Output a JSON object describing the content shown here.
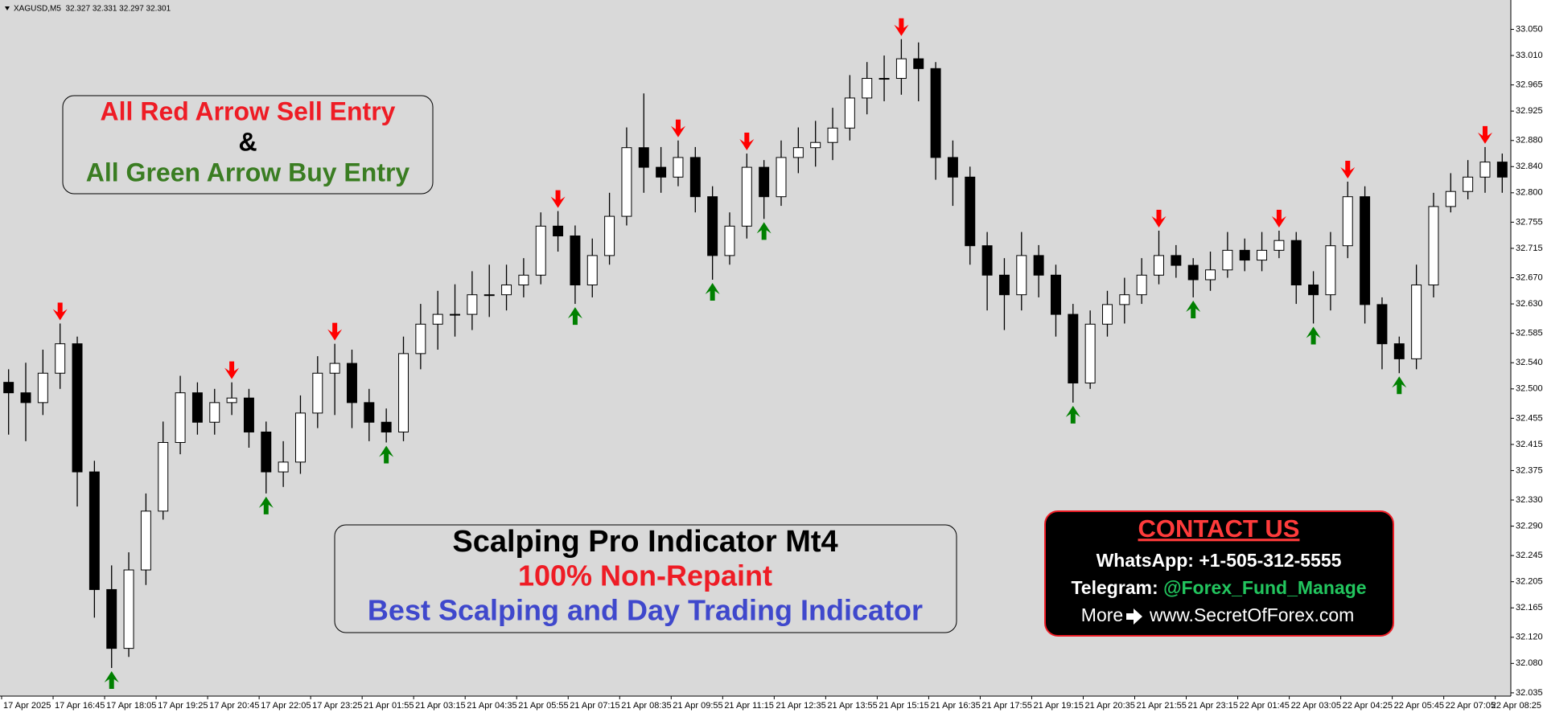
{
  "chart_data": {
    "type": "candlestick",
    "title": "XAGUSD,M5  32.327 32.331 32.297 32.301",
    "categories": [
      "17 Apr 2025",
      null,
      null,
      "17 Apr 16:45",
      null,
      null,
      "17 Apr 18:05",
      null,
      null,
      "17 Apr 19:25",
      null,
      null,
      "17 Apr 20:45",
      null,
      null,
      "17 Apr 22:05",
      null,
      null,
      "17 Apr 23:25",
      null,
      null,
      "21 Apr 01:55",
      null,
      null,
      "21 Apr 03:15",
      null,
      null,
      "21 Apr 04:35",
      null,
      null,
      "21 Apr 05:55",
      null,
      null,
      "21 Apr 07:15",
      null,
      null,
      "21 Apr 08:35",
      null,
      null,
      "21 Apr 09:55",
      null,
      null,
      "21 Apr 11:15",
      null,
      null,
      "21 Apr 12:35",
      null,
      null,
      "21 Apr 13:55",
      null,
      null,
      "21 Apr 15:15",
      null,
      null,
      "21 Apr 16:35",
      null,
      null,
      "21 Apr 17:55",
      null,
      null,
      "21 Apr 19:15",
      null,
      null,
      "21 Apr 20:35",
      null,
      null,
      "21 Apr 21:55",
      null,
      null,
      "21 Apr 23:15",
      null,
      null,
      "22 Apr 01:45",
      null,
      null,
      "22 Apr 03:05",
      null,
      null,
      "22 Apr 04:25",
      null,
      null,
      "22 Apr 05:45",
      null,
      null,
      "22 Apr 07:05",
      null,
      null,
      "22 Apr 08:25"
    ],
    "open": [
      32.51,
      32.494,
      32.479,
      32.524,
      32.569,
      32.373,
      32.193,
      32.103,
      32.223,
      32.313,
      32.418,
      32.494,
      32.449,
      32.479,
      32.486,
      32.434,
      32.373,
      32.388,
      32.463,
      32.524,
      32.539,
      32.479,
      32.449,
      32.434,
      32.554,
      32.599,
      32.614,
      32.614,
      32.644,
      32.644,
      32.659,
      32.674,
      32.749,
      32.734,
      32.659,
      32.704,
      32.764,
      32.869,
      32.839,
      32.824,
      32.854,
      32.794,
      32.704,
      32.749,
      32.839,
      32.794,
      32.854,
      32.869,
      32.877,
      32.899,
      32.945,
      32.975,
      32.975,
      33.005,
      32.99,
      32.854,
      32.824,
      32.719,
      32.674,
      32.644,
      32.704,
      32.674,
      32.614,
      32.509,
      32.599,
      32.629,
      32.644,
      32.674,
      32.704,
      32.689,
      32.667,
      32.682,
      32.712,
      32.697,
      32.712,
      32.727,
      32.659,
      32.644,
      32.719,
      32.794,
      32.629,
      32.569,
      32.546,
      32.659,
      32.779,
      32.802,
      32.824,
      32.847
    ],
    "high": [
      32.53,
      32.54,
      32.56,
      32.6,
      32.58,
      32.39,
      32.23,
      32.25,
      32.34,
      32.45,
      32.52,
      32.51,
      32.5,
      32.51,
      32.5,
      32.45,
      32.42,
      32.49,
      32.55,
      32.569,
      32.56,
      32.5,
      32.47,
      32.58,
      32.63,
      32.65,
      32.66,
      32.68,
      32.69,
      32.69,
      32.7,
      32.77,
      32.772,
      32.75,
      32.73,
      32.8,
      32.9,
      32.952,
      32.87,
      32.88,
      32.87,
      32.81,
      32.77,
      32.86,
      32.85,
      32.88,
      32.9,
      32.91,
      32.93,
      32.98,
      33.0,
      33.01,
      33.035,
      33.03,
      33.0,
      32.88,
      32.84,
      32.74,
      32.7,
      32.74,
      32.72,
      32.69,
      32.63,
      32.62,
      32.65,
      32.67,
      32.7,
      32.742,
      32.72,
      32.7,
      32.71,
      32.74,
      32.73,
      32.74,
      32.742,
      32.74,
      32.68,
      32.74,
      32.817,
      32.81,
      32.64,
      32.58,
      32.69,
      32.8,
      32.83,
      32.85,
      32.87,
      32.86
    ],
    "low": [
      32.43,
      32.42,
      32.46,
      32.5,
      32.32,
      32.15,
      32.073,
      32.09,
      32.2,
      32.3,
      32.4,
      32.43,
      32.43,
      32.46,
      32.41,
      32.34,
      32.35,
      32.37,
      32.44,
      32.46,
      32.44,
      32.42,
      32.418,
      32.42,
      32.53,
      32.56,
      32.58,
      32.59,
      32.61,
      32.62,
      32.64,
      32.66,
      32.71,
      32.63,
      32.64,
      32.69,
      32.75,
      32.8,
      32.8,
      32.81,
      32.77,
      32.667,
      32.69,
      32.73,
      32.76,
      32.78,
      32.83,
      32.84,
      32.85,
      32.88,
      32.92,
      32.94,
      32.95,
      32.94,
      32.82,
      32.78,
      32.69,
      32.62,
      32.59,
      32.62,
      32.64,
      32.58,
      32.479,
      32.5,
      32.58,
      32.6,
      32.63,
      32.66,
      32.67,
      32.64,
      32.65,
      32.67,
      32.68,
      32.68,
      32.7,
      32.63,
      32.6,
      32.62,
      32.7,
      32.6,
      32.53,
      32.524,
      32.53,
      32.64,
      32.77,
      32.79,
      32.8,
      32.8
    ],
    "close": [
      32.494,
      32.479,
      32.524,
      32.569,
      32.373,
      32.193,
      32.103,
      32.223,
      32.313,
      32.418,
      32.494,
      32.449,
      32.479,
      32.486,
      32.434,
      32.373,
      32.388,
      32.463,
      32.524,
      32.539,
      32.479,
      32.449,
      32.434,
      32.554,
      32.599,
      32.614,
      32.614,
      32.644,
      32.644,
      32.659,
      32.674,
      32.749,
      32.734,
      32.659,
      32.704,
      32.764,
      32.869,
      32.839,
      32.824,
      32.854,
      32.794,
      32.704,
      32.749,
      32.839,
      32.794,
      32.854,
      32.869,
      32.877,
      32.899,
      32.945,
      32.975,
      32.975,
      33.005,
      32.99,
      32.854,
      32.824,
      32.719,
      32.674,
      32.644,
      32.704,
      32.674,
      32.614,
      32.509,
      32.599,
      32.629,
      32.644,
      32.674,
      32.704,
      32.689,
      32.667,
      32.682,
      32.712,
      32.697,
      32.712,
      32.727,
      32.659,
      32.644,
      32.719,
      32.794,
      32.629,
      32.569,
      32.546,
      32.659,
      32.779,
      32.802,
      32.824,
      32.847,
      32.824
    ],
    "up_color": "#ffffff",
    "down_color": "#000000",
    "sell_arrows": [
      3,
      13,
      19,
      32,
      39,
      43,
      52,
      67,
      74,
      78,
      86
    ],
    "buy_arrows": [
      6,
      15,
      22,
      33,
      41,
      44,
      62,
      69,
      76,
      81
    ],
    "sell_color": "#ff0000",
    "buy_color": "#008000",
    "ylim": [
      32.03,
      33.09
    ],
    "yticks": [
      {
        "value": 33.05,
        "label": "33.050"
      },
      {
        "value": 33.01,
        "label": "33.010"
      },
      32.965,
      32.925,
      {
        "value": 32.88,
        "label": "32.880"
      },
      {
        "value": 32.84,
        "label": "32.840"
      },
      {
        "value": 32.8,
        "label": "32.800"
      },
      32.755,
      32.715,
      {
        "value": 32.67,
        "label": "32.670"
      },
      {
        "value": 32.63,
        "label": "32.630"
      },
      32.585,
      {
        "value": 32.54,
        "label": "32.540"
      },
      {
        "value": 32.5,
        "label": "32.500"
      },
      32.455,
      32.415,
      32.375,
      {
        "value": 32.33,
        "label": "32.330"
      },
      {
        "value": 32.29,
        "label": "32.290"
      },
      32.245,
      32.205,
      32.165,
      {
        "value": 32.12,
        "label": "32.120"
      },
      {
        "value": 32.08,
        "label": "32.080"
      },
      32.035
    ]
  },
  "annotations": {
    "entry_box": {
      "sell": "All Red Arrow Sell Entry",
      "and": "&",
      "buy": "All Green Arrow Buy Entry"
    },
    "promo_box": {
      "title": "Scalping Pro Indicator Mt4",
      "subtitle": "100% Non-Repaint",
      "tagline": "Best Scalping and Day Trading Indicator"
    },
    "contact_box": {
      "heading": "CONTACT US",
      "whatsapp": "WhatsApp: +1-505-312-5555",
      "telegram_label": "Telegram: ",
      "telegram_handle": "@Forex_Fund_Manage",
      "more": "More",
      "website": "www.SecretOfForex.com"
    }
  }
}
